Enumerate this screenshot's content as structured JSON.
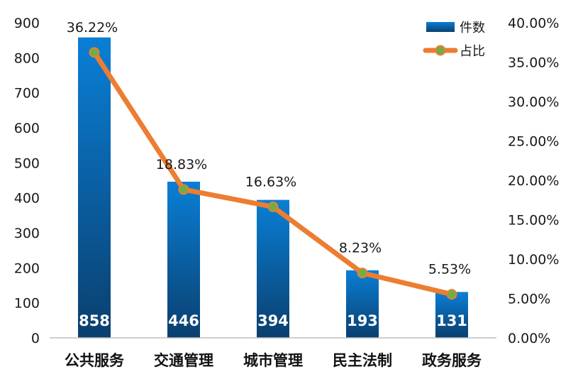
{
  "chart_data": {
    "type": "bar",
    "categories": [
      "公共服务",
      "交通管理",
      "城市管理",
      "民主法制",
      "政务服务"
    ],
    "series": [
      {
        "name": "件数",
        "type": "bar",
        "axis": "left",
        "values": [
          858,
          446,
          394,
          193,
          131
        ],
        "labels": [
          "858",
          "446",
          "394",
          "193",
          "131"
        ]
      },
      {
        "name": "占比",
        "type": "line",
        "axis": "right",
        "values": [
          36.22,
          18.83,
          16.63,
          8.23,
          5.53
        ],
        "labels": [
          "36.22%",
          "18.83%",
          "16.63%",
          "8.23%",
          "5.53%"
        ]
      }
    ],
    "title": "",
    "xlabel": "",
    "ylabel": "",
    "ylim": [
      0,
      900
    ],
    "y2lim": [
      0,
      40
    ],
    "yticks": [
      "0",
      "100",
      "200",
      "300",
      "400",
      "500",
      "600",
      "700",
      "800",
      "900"
    ],
    "y2ticks": [
      "0.00%",
      "5.00%",
      "10.00%",
      "15.00%",
      "20.00%",
      "25.00%",
      "30.00%",
      "35.00%",
      "40.00%"
    ],
    "legend": {
      "placement": "top-right",
      "items": [
        "件数",
        "占比"
      ]
    },
    "grid": false,
    "colors": {
      "bar_top": "#0a7fd6",
      "bar_bottom": "#0a3f6e",
      "line": "#ed7d31",
      "marker": "#70ad47",
      "axis": "#bfbfbf"
    }
  }
}
